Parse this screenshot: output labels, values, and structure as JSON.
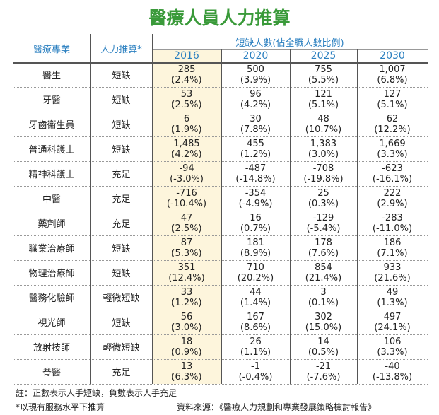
{
  "title": "醫療人員人力推算",
  "table": {
    "header": {
      "profession": "醫療專業",
      "projection": "人力推算*",
      "shortage": "短缺人數(佔全職人數比例)",
      "years": [
        "2016",
        "2020",
        "2025",
        "2030"
      ]
    },
    "rows": [
      {
        "profession": "醫生",
        "projection": "短缺",
        "cells": [
          [
            "285",
            "(2.4%)"
          ],
          [
            "500",
            "(3.9%)"
          ],
          [
            "755",
            "(5.5%)"
          ],
          [
            "1,007",
            "(6.8%)"
          ]
        ]
      },
      {
        "profession": "牙醫",
        "projection": "短缺",
        "cells": [
          [
            "53",
            "(2.5%)"
          ],
          [
            "96",
            "(4.2%)"
          ],
          [
            "121",
            "(5.1%)"
          ],
          [
            "127",
            "(5.1%)"
          ]
        ]
      },
      {
        "profession": "牙齒衞生員",
        "projection": "短缺",
        "cells": [
          [
            "6",
            "(1.9%)"
          ],
          [
            "30",
            "(7.8%)"
          ],
          [
            "48",
            "(10.7%)"
          ],
          [
            "62",
            "(12.2%)"
          ]
        ]
      },
      {
        "profession": "普通科護士",
        "projection": "短缺",
        "cells": [
          [
            "1,485",
            "(4.2%)"
          ],
          [
            "455",
            "(1.2%)"
          ],
          [
            "1,383",
            "(3.0%)"
          ],
          [
            "1,669",
            "(3.3%)"
          ]
        ]
      },
      {
        "profession": "精神科護士",
        "projection": "充足",
        "cells": [
          [
            "-94",
            "(-3.0%)"
          ],
          [
            "-487",
            "(-14.8%)"
          ],
          [
            "-708",
            "(-19.8%)"
          ],
          [
            "-623",
            "(-16.1%)"
          ]
        ]
      },
      {
        "profession": "中醫",
        "projection": "充足",
        "cells": [
          [
            "-716",
            "(-10.4%)"
          ],
          [
            "-354",
            "(-4.9%)"
          ],
          [
            "25",
            "(0.3%)"
          ],
          [
            "222",
            "(2.9%)"
          ]
        ]
      },
      {
        "profession": "藥劑師",
        "projection": "充足",
        "cells": [
          [
            "47",
            "(2.5%)"
          ],
          [
            "16",
            "(0.7%)"
          ],
          [
            "-129",
            "(-5.4%)"
          ],
          [
            "-283",
            "(-11.0%)"
          ]
        ]
      },
      {
        "profession": "職業治療師",
        "projection": "短缺",
        "cells": [
          [
            "87",
            "(5.3%)"
          ],
          [
            "181",
            "(8.9%)"
          ],
          [
            "178",
            "(7.6%)"
          ],
          [
            "186",
            "(7.1%)"
          ]
        ]
      },
      {
        "profession": "物理治療師",
        "projection": "短缺",
        "cells": [
          [
            "351",
            "(12.4%)"
          ],
          [
            "710",
            "(20.2%)"
          ],
          [
            "854",
            "(21.4%)"
          ],
          [
            "933",
            "(21.6%)"
          ]
        ]
      },
      {
        "profession": "醫務化驗師",
        "projection": "輕微短缺",
        "cells": [
          [
            "33",
            "(1.2%)"
          ],
          [
            "44",
            "(1.4%)"
          ],
          [
            "3",
            "(0.1%)"
          ],
          [
            "49",
            "(1.3%)"
          ]
        ]
      },
      {
        "profession": "視光師",
        "projection": "短缺",
        "cells": [
          [
            "56",
            "(3.0%)"
          ],
          [
            "167",
            "(8.6%)"
          ],
          [
            "302",
            "(15.0%)"
          ],
          [
            "497",
            "(24.1%)"
          ]
        ]
      },
      {
        "profession": "放射技師",
        "projection": "輕微短缺",
        "cells": [
          [
            "18",
            "(0.9%)"
          ],
          [
            "26",
            "(1.1%)"
          ],
          [
            "14",
            "(0.5%)"
          ],
          [
            "106",
            "(3.3%)"
          ]
        ]
      },
      {
        "profession": "脊醫",
        "projection": "充足",
        "cells": [
          [
            "13",
            "(6.3%)"
          ],
          [
            "-1",
            "(-0.4%)"
          ],
          [
            "-21",
            "(-7.6%)"
          ],
          [
            "-40",
            "(-13.8%)"
          ]
        ]
      }
    ]
  },
  "notes": [
    "註：正數表示人手短缺，負數表示人手充足",
    "*以現有服務水平下推算"
  ],
  "source": "資料來源：《醫療人力規劃和專業發展策略檢討報告》"
}
